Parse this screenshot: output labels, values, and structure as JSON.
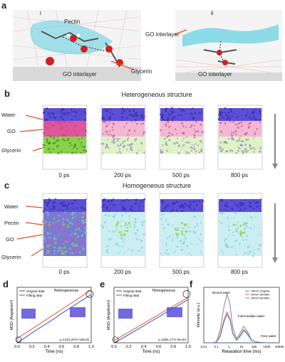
{
  "panel_a": {
    "label": "a",
    "sub_i": "i",
    "sub_ii": "ii",
    "pectin": "Pectin",
    "go_interlayer_i": "GO interlayer",
    "glycerin": "Glycerin",
    "go_interlayer_ii_top": "GO interlayer",
    "go_interlayer_ii_bottom": "GO interlayer"
  },
  "panel_b": {
    "label": "b",
    "title": "Heterogeneous structure",
    "layers": [
      "Water",
      "GO",
      "Glycerin"
    ],
    "times": [
      "0 ps",
      "200 ps",
      "500 ps",
      "800 ps"
    ]
  },
  "panel_c": {
    "label": "c",
    "title": "Homogeneous structure",
    "layers": [
      "Water",
      "Pectin",
      "GO",
      "Glycerin"
    ],
    "times": [
      "0 ps",
      "200 ps",
      "500 ps",
      "800 ps"
    ]
  },
  "chart_data": [
    {
      "panel": "d",
      "type": "line",
      "ylabel": "MSD (Angstrom²)",
      "xlabel": "Time (ns)",
      "annotation": "Heterogeneous",
      "equation": "y=1224.20*x+106.02",
      "legend": [
        "Original data",
        "Fitting data"
      ],
      "xlim": [
        0,
        1.0
      ],
      "xticks": [
        "0.0",
        "0.2",
        "0.4",
        "0.6",
        "0.8",
        "1.0"
      ],
      "ylim": [
        0,
        1400
      ],
      "series": [
        {
          "name": "Original data",
          "x": [
            0.0,
            0.1,
            0.2,
            0.3,
            0.4,
            0.5,
            0.6,
            0.7,
            0.8,
            0.9,
            1.0
          ],
          "y": [
            0,
            120,
            250,
            370,
            490,
            610,
            740,
            860,
            980,
            1100,
            1220
          ]
        },
        {
          "name": "Fitting data",
          "x": [
            0.0,
            1.0
          ],
          "y": [
            106.02,
            1330.22
          ]
        }
      ]
    },
    {
      "panel": "e",
      "type": "line",
      "ylabel": "MSD (Angstrom²)",
      "xlabel": "Time (ns)",
      "annotation": "Homogeneous",
      "equation": "y=1091.17*x+54.94",
      "legend": [
        "Original data",
        "Fitting data"
      ],
      "xlim": [
        0,
        1.0
      ],
      "xticks": [
        "0.0",
        "0.2",
        "0.4",
        "0.6",
        "0.8",
        "1.0"
      ],
      "ylim": [
        0,
        1400
      ],
      "series": [
        {
          "name": "Original data",
          "x": [
            0.0,
            0.1,
            0.2,
            0.3,
            0.4,
            0.5,
            0.6,
            0.7,
            0.8,
            0.9,
            1.0
          ],
          "y": [
            0,
            100,
            210,
            320,
            430,
            540,
            650,
            760,
            870,
            980,
            1090
          ]
        },
        {
          "name": "Fitting data",
          "x": [
            0.0,
            1.0
          ],
          "y": [
            54.94,
            1146.11
          ]
        }
      ]
    },
    {
      "panel": "f",
      "type": "line",
      "ylabel": "Intensity (a.u.)",
      "xlabel": "Relaxation time (ms)",
      "xscale": "log",
      "xticks": [
        "0.01",
        "0.1",
        "1",
        "10",
        "100",
        "1000",
        "10000"
      ],
      "legend": [
        "HPGF-Original",
        "HPGF-30%RH",
        "HPGF-60%RH"
      ],
      "annotations": [
        "Bound water",
        "Intermediate water",
        "Free water"
      ],
      "series": [
        {
          "name": "HPGF-Original",
          "x": [
            0.05,
            0.1,
            0.2,
            0.4,
            0.7,
            1.2,
            2,
            4,
            8,
            15,
            30,
            60,
            120,
            300,
            1000
          ],
          "y": [
            0,
            0.02,
            0.25,
            0.7,
            0.95,
            0.75,
            0.3,
            0.08,
            0.2,
            0.32,
            0.22,
            0.06,
            0.02,
            0.01,
            0
          ]
        },
        {
          "name": "HPGF-30%RH",
          "x": [
            0.05,
            0.1,
            0.2,
            0.4,
            0.7,
            1.2,
            2,
            4,
            8,
            15,
            30,
            60,
            120,
            300,
            1000
          ],
          "y": [
            0,
            0.01,
            0.15,
            0.45,
            0.6,
            0.48,
            0.2,
            0.05,
            0.15,
            0.26,
            0.18,
            0.05,
            0.02,
            0.005,
            0
          ]
        },
        {
          "name": "HPGF-60%RH",
          "x": [
            0.05,
            0.1,
            0.2,
            0.4,
            0.7,
            1.2,
            2,
            4,
            8,
            15,
            30,
            60,
            120,
            300,
            1000
          ],
          "y": [
            0,
            0.01,
            0.12,
            0.4,
            0.55,
            0.44,
            0.18,
            0.05,
            0.13,
            0.24,
            0.16,
            0.05,
            0.02,
            0.005,
            0
          ]
        }
      ]
    }
  ],
  "colors": {
    "water": "#5b4fd6",
    "go": "#e0569a",
    "glycerin": "#8ad14a",
    "pectin": "#9fd8e8",
    "cyan_surface": "#5fd0e0",
    "red_arrow": "#e2502f",
    "orig_line": "#4a6fd6",
    "fit_line": "#e25a3a",
    "f_orig": "#888888",
    "f_30": "#e05a50",
    "f_60": "#4a90d9"
  }
}
